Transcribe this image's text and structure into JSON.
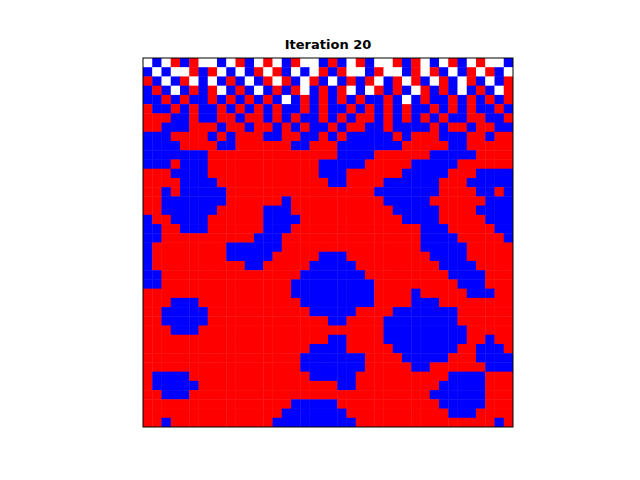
{
  "chart_data": {
    "type": "heatmap",
    "title": "Iteration 20",
    "colors": [
      "#ffffff",
      "#ff0000",
      "#0000ff"
    ],
    "tick_labels": false,
    "cells": [
      [
        0,
        2,
        0,
        1,
        2,
        1,
        0,
        0,
        2,
        0,
        1,
        2,
        0,
        1,
        0,
        2,
        1,
        0,
        0,
        2,
        1,
        2,
        0,
        1,
        2,
        0,
        0,
        1,
        2,
        1,
        0,
        2,
        0,
        1,
        2,
        0,
        1,
        0,
        0,
        2
      ],
      [
        2,
        0,
        2,
        0,
        0,
        1,
        2,
        1,
        0,
        2,
        0,
        2,
        1,
        0,
        1,
        2,
        0,
        2,
        0,
        1,
        2,
        1,
        0,
        0,
        2,
        1,
        0,
        0,
        2,
        1,
        0,
        1,
        2,
        0,
        2,
        1,
        0,
        1,
        2,
        0
      ],
      [
        1,
        2,
        0,
        2,
        1,
        0,
        2,
        0,
        2,
        1,
        2,
        0,
        2,
        1,
        0,
        1,
        2,
        0,
        1,
        2,
        0,
        2,
        1,
        2,
        1,
        0,
        2,
        1,
        0,
        1,
        2,
        0,
        1,
        2,
        0,
        1,
        2,
        0,
        2,
        1
      ],
      [
        2,
        1,
        2,
        0,
        2,
        1,
        2,
        1,
        0,
        2,
        1,
        2,
        0,
        2,
        1,
        2,
        1,
        0,
        2,
        1,
        2,
        1,
        0,
        2,
        0,
        1,
        2,
        1,
        2,
        0,
        1,
        2,
        1,
        2,
        0,
        2,
        1,
        2,
        0,
        1
      ],
      [
        2,
        2,
        1,
        2,
        1,
        2,
        2,
        1,
        2,
        1,
        2,
        1,
        2,
        1,
        2,
        0,
        2,
        1,
        2,
        1,
        2,
        1,
        2,
        1,
        2,
        2,
        1,
        2,
        0,
        2,
        1,
        2,
        2,
        1,
        2,
        1,
        2,
        1,
        2,
        1
      ],
      [
        1,
        2,
        2,
        1,
        2,
        1,
        2,
        2,
        1,
        2,
        1,
        2,
        1,
        2,
        1,
        2,
        2,
        1,
        2,
        1,
        2,
        2,
        1,
        2,
        1,
        2,
        1,
        2,
        1,
        2,
        2,
        1,
        2,
        1,
        2,
        1,
        2,
        2,
        1,
        2
      ],
      [
        1,
        1,
        1,
        2,
        2,
        1,
        2,
        2,
        1,
        1,
        2,
        1,
        1,
        2,
        1,
        2,
        1,
        2,
        2,
        1,
        2,
        1,
        2,
        1,
        1,
        2,
        1,
        2,
        1,
        2,
        1,
        2,
        1,
        2,
        2,
        1,
        1,
        2,
        2,
        1
      ],
      [
        1,
        1,
        2,
        2,
        2,
        1,
        1,
        1,
        2,
        1,
        1,
        2,
        1,
        1,
        2,
        1,
        2,
        1,
        2,
        2,
        1,
        2,
        1,
        1,
        2,
        2,
        1,
        2,
        2,
        2,
        2,
        1,
        2,
        1,
        1,
        2,
        1,
        1,
        2,
        2
      ],
      [
        2,
        2,
        2,
        1,
        1,
        1,
        1,
        2,
        1,
        2,
        1,
        1,
        1,
        2,
        2,
        1,
        1,
        2,
        2,
        1,
        2,
        1,
        2,
        2,
        2,
        2,
        2,
        1,
        2,
        1,
        1,
        1,
        2,
        2,
        2,
        1,
        1,
        2,
        1,
        1
      ],
      [
        2,
        2,
        2,
        2,
        1,
        1,
        1,
        1,
        2,
        2,
        1,
        1,
        1,
        1,
        1,
        1,
        2,
        2,
        1,
        1,
        1,
        2,
        2,
        2,
        2,
        2,
        2,
        2,
        1,
        1,
        1,
        1,
        1,
        2,
        2,
        1,
        1,
        1,
        1,
        1
      ],
      [
        2,
        2,
        2,
        2,
        2,
        2,
        2,
        1,
        1,
        1,
        1,
        1,
        1,
        1,
        1,
        1,
        1,
        1,
        1,
        1,
        1,
        2,
        2,
        2,
        2,
        1,
        1,
        1,
        1,
        1,
        1,
        2,
        2,
        2,
        2,
        2,
        1,
        1,
        1,
        1
      ],
      [
        2,
        2,
        2,
        1,
        2,
        2,
        2,
        1,
        1,
        1,
        1,
        1,
        1,
        1,
        1,
        1,
        1,
        1,
        1,
        2,
        2,
        2,
        2,
        2,
        1,
        1,
        1,
        1,
        1,
        2,
        2,
        2,
        2,
        2,
        1,
        1,
        1,
        1,
        1,
        1
      ],
      [
        1,
        1,
        1,
        2,
        2,
        2,
        2,
        1,
        1,
        1,
        1,
        1,
        1,
        1,
        1,
        1,
        1,
        1,
        1,
        2,
        2,
        2,
        1,
        1,
        1,
        1,
        1,
        1,
        2,
        2,
        2,
        2,
        2,
        1,
        1,
        1,
        2,
        2,
        2,
        2
      ],
      [
        1,
        1,
        1,
        1,
        2,
        2,
        2,
        2,
        1,
        1,
        1,
        1,
        1,
        1,
        1,
        1,
        1,
        1,
        1,
        1,
        2,
        2,
        1,
        1,
        1,
        1,
        2,
        2,
        2,
        2,
        2,
        2,
        1,
        1,
        1,
        2,
        2,
        2,
        2,
        2
      ],
      [
        1,
        1,
        2,
        1,
        2,
        2,
        2,
        2,
        2,
        1,
        1,
        1,
        1,
        1,
        1,
        1,
        1,
        1,
        1,
        1,
        1,
        1,
        1,
        1,
        1,
        2,
        2,
        2,
        2,
        2,
        2,
        2,
        1,
        1,
        1,
        1,
        2,
        2,
        1,
        2
      ],
      [
        1,
        1,
        2,
        2,
        2,
        2,
        2,
        2,
        2,
        1,
        1,
        1,
        1,
        1,
        1,
        2,
        1,
        1,
        1,
        1,
        1,
        1,
        1,
        1,
        1,
        1,
        2,
        2,
        2,
        2,
        2,
        1,
        1,
        1,
        1,
        1,
        1,
        2,
        2,
        2
      ],
      [
        1,
        1,
        2,
        2,
        2,
        2,
        2,
        2,
        1,
        1,
        1,
        1,
        1,
        2,
        2,
        2,
        1,
        1,
        1,
        1,
        1,
        1,
        1,
        1,
        1,
        1,
        1,
        2,
        2,
        2,
        2,
        2,
        1,
        1,
        1,
        1,
        2,
        2,
        2,
        2
      ],
      [
        2,
        1,
        1,
        2,
        2,
        2,
        2,
        1,
        1,
        1,
        1,
        1,
        1,
        2,
        2,
        2,
        2,
        1,
        1,
        1,
        1,
        1,
        1,
        1,
        1,
        1,
        1,
        1,
        2,
        2,
        2,
        2,
        1,
        1,
        1,
        1,
        1,
        2,
        2,
        2
      ],
      [
        2,
        2,
        1,
        1,
        2,
        2,
        2,
        1,
        1,
        1,
        1,
        1,
        1,
        2,
        2,
        2,
        1,
        1,
        1,
        1,
        1,
        1,
        1,
        1,
        1,
        1,
        1,
        1,
        1,
        1,
        2,
        2,
        2,
        1,
        1,
        1,
        1,
        1,
        2,
        2
      ],
      [
        2,
        2,
        1,
        1,
        1,
        1,
        1,
        1,
        1,
        1,
        1,
        1,
        2,
        2,
        2,
        1,
        1,
        1,
        1,
        1,
        1,
        1,
        1,
        1,
        1,
        1,
        1,
        1,
        1,
        1,
        2,
        2,
        2,
        2,
        1,
        1,
        1,
        1,
        1,
        2
      ],
      [
        2,
        1,
        1,
        1,
        1,
        1,
        1,
        1,
        1,
        2,
        2,
        2,
        2,
        2,
        2,
        1,
        1,
        1,
        1,
        1,
        1,
        1,
        1,
        1,
        1,
        1,
        1,
        1,
        1,
        1,
        2,
        2,
        2,
        2,
        2,
        1,
        1,
        1,
        1,
        1
      ],
      [
        2,
        1,
        1,
        1,
        1,
        1,
        1,
        1,
        1,
        2,
        2,
        2,
        2,
        2,
        1,
        1,
        1,
        1,
        1,
        2,
        2,
        2,
        1,
        1,
        1,
        1,
        1,
        1,
        1,
        1,
        1,
        2,
        2,
        2,
        2,
        1,
        1,
        1,
        1,
        1
      ],
      [
        2,
        1,
        1,
        1,
        1,
        1,
        1,
        1,
        1,
        1,
        1,
        2,
        2,
        1,
        1,
        1,
        1,
        1,
        2,
        2,
        2,
        2,
        2,
        1,
        1,
        1,
        1,
        1,
        1,
        1,
        1,
        1,
        2,
        2,
        2,
        2,
        1,
        1,
        1,
        1
      ],
      [
        2,
        2,
        1,
        1,
        1,
        1,
        1,
        1,
        1,
        1,
        1,
        1,
        1,
        1,
        1,
        1,
        1,
        2,
        2,
        2,
        2,
        2,
        2,
        2,
        1,
        1,
        1,
        1,
        1,
        1,
        1,
        1,
        1,
        2,
        2,
        2,
        2,
        1,
        1,
        1
      ],
      [
        2,
        2,
        1,
        1,
        1,
        1,
        1,
        1,
        1,
        1,
        1,
        1,
        1,
        1,
        1,
        1,
        2,
        2,
        2,
        2,
        2,
        2,
        2,
        2,
        2,
        1,
        1,
        1,
        1,
        1,
        1,
        1,
        1,
        1,
        2,
        2,
        2,
        1,
        1,
        1
      ],
      [
        1,
        1,
        1,
        1,
        1,
        1,
        1,
        1,
        1,
        1,
        1,
        1,
        1,
        1,
        1,
        1,
        2,
        2,
        2,
        2,
        2,
        2,
        2,
        2,
        2,
        1,
        1,
        1,
        1,
        2,
        1,
        1,
        1,
        1,
        1,
        2,
        2,
        2,
        1,
        1
      ],
      [
        1,
        1,
        1,
        2,
        2,
        2,
        1,
        1,
        1,
        1,
        1,
        1,
        1,
        1,
        1,
        1,
        1,
        2,
        2,
        2,
        2,
        2,
        2,
        2,
        2,
        1,
        1,
        1,
        1,
        2,
        2,
        2,
        1,
        1,
        1,
        1,
        1,
        1,
        1,
        1
      ],
      [
        1,
        1,
        2,
        2,
        2,
        2,
        2,
        1,
        1,
        1,
        1,
        1,
        1,
        1,
        1,
        1,
        1,
        1,
        2,
        2,
        2,
        2,
        2,
        1,
        1,
        1,
        1,
        2,
        2,
        2,
        2,
        2,
        2,
        2,
        1,
        1,
        1,
        1,
        1,
        1
      ],
      [
        1,
        1,
        2,
        2,
        2,
        2,
        2,
        1,
        1,
        1,
        1,
        1,
        1,
        1,
        1,
        1,
        1,
        1,
        1,
        1,
        2,
        2,
        1,
        1,
        1,
        1,
        2,
        2,
        2,
        2,
        2,
        2,
        2,
        2,
        1,
        1,
        1,
        1,
        1,
        1
      ],
      [
        1,
        1,
        1,
        2,
        2,
        2,
        1,
        1,
        1,
        1,
        1,
        1,
        1,
        1,
        1,
        1,
        1,
        1,
        1,
        1,
        1,
        1,
        1,
        1,
        1,
        1,
        2,
        2,
        2,
        2,
        2,
        2,
        2,
        2,
        2,
        1,
        1,
        1,
        1,
        1
      ],
      [
        1,
        1,
        1,
        1,
        1,
        1,
        1,
        1,
        1,
        1,
        1,
        1,
        1,
        1,
        1,
        1,
        1,
        1,
        1,
        1,
        2,
        2,
        1,
        1,
        1,
        1,
        2,
        2,
        2,
        2,
        2,
        2,
        2,
        2,
        2,
        1,
        1,
        2,
        1,
        1
      ],
      [
        1,
        1,
        1,
        1,
        1,
        1,
        1,
        1,
        1,
        1,
        1,
        1,
        1,
        1,
        1,
        1,
        1,
        1,
        2,
        2,
        2,
        2,
        1,
        1,
        1,
        1,
        1,
        2,
        2,
        2,
        2,
        2,
        2,
        2,
        1,
        1,
        2,
        2,
        2,
        1
      ],
      [
        1,
        1,
        1,
        1,
        1,
        1,
        1,
        1,
        1,
        1,
        1,
        1,
        1,
        1,
        1,
        1,
        1,
        2,
        2,
        2,
        2,
        2,
        2,
        2,
        1,
        1,
        1,
        1,
        2,
        2,
        2,
        2,
        2,
        1,
        1,
        1,
        2,
        2,
        2,
        2
      ],
      [
        1,
        1,
        1,
        1,
        1,
        1,
        1,
        1,
        1,
        1,
        1,
        1,
        1,
        1,
        1,
        1,
        1,
        2,
        2,
        2,
        2,
        2,
        2,
        2,
        1,
        1,
        1,
        1,
        1,
        2,
        2,
        1,
        1,
        1,
        1,
        1,
        1,
        2,
        2,
        2
      ],
      [
        1,
        2,
        2,
        2,
        2,
        1,
        1,
        1,
        1,
        1,
        1,
        1,
        1,
        1,
        1,
        1,
        1,
        1,
        2,
        2,
        2,
        2,
        2,
        1,
        1,
        1,
        1,
        1,
        1,
        1,
        1,
        1,
        1,
        2,
        2,
        2,
        2,
        1,
        1,
        1
      ],
      [
        1,
        2,
        2,
        2,
        2,
        2,
        1,
        1,
        1,
        1,
        1,
        1,
        1,
        1,
        1,
        1,
        1,
        1,
        1,
        1,
        1,
        2,
        2,
        1,
        1,
        1,
        1,
        1,
        1,
        1,
        1,
        1,
        2,
        2,
        2,
        2,
        2,
        1,
        1,
        1
      ],
      [
        1,
        1,
        2,
        2,
        2,
        1,
        1,
        1,
        1,
        1,
        1,
        1,
        1,
        1,
        1,
        1,
        1,
        1,
        1,
        1,
        1,
        1,
        1,
        1,
        1,
        1,
        1,
        1,
        1,
        1,
        1,
        2,
        2,
        2,
        2,
        2,
        2,
        1,
        1,
        1
      ],
      [
        1,
        1,
        1,
        1,
        1,
        1,
        1,
        1,
        1,
        1,
        1,
        1,
        1,
        1,
        1,
        1,
        2,
        2,
        2,
        2,
        2,
        1,
        1,
        1,
        1,
        1,
        1,
        1,
        1,
        1,
        1,
        1,
        2,
        2,
        2,
        2,
        2,
        1,
        1,
        1
      ],
      [
        1,
        1,
        1,
        1,
        1,
        1,
        1,
        1,
        1,
        1,
        1,
        1,
        1,
        1,
        1,
        2,
        2,
        2,
        2,
        2,
        2,
        2,
        1,
        1,
        1,
        1,
        1,
        1,
        1,
        1,
        1,
        1,
        1,
        2,
        2,
        2,
        1,
        1,
        1,
        1
      ],
      [
        1,
        1,
        2,
        1,
        1,
        1,
        1,
        1,
        1,
        1,
        1,
        1,
        1,
        1,
        2,
        2,
        2,
        2,
        2,
        2,
        2,
        2,
        2,
        1,
        1,
        1,
        1,
        1,
        1,
        1,
        1,
        1,
        1,
        1,
        1,
        1,
        1,
        1,
        2,
        1
      ]
    ]
  }
}
